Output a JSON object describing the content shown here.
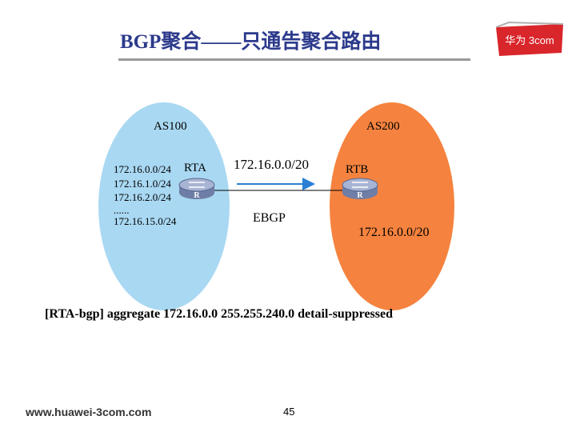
{
  "slide": {
    "title": "BGP聚合——只通告聚合路由",
    "logo_text": "华为 3com",
    "as_left": "AS100",
    "as_right": "AS200",
    "router_a": "RTA",
    "router_b": "RTB",
    "routes": [
      "172.16.0.0/24",
      "172.16.1.0/24",
      "172.16.2.0/24",
      "......",
      "172.16.15.0/24"
    ],
    "aggregate_sent": "172.16.0.0/20",
    "link_label": "EBGP",
    "aggregate_received": "172.16.0.0/20",
    "router_icon_letter": "R",
    "command": "[RTA-bgp] aggregate 172.16.0.0 255.255.240.0 detail-suppressed",
    "website": "www.huawei-3com.com",
    "page_number": "45"
  },
  "colors": {
    "as100_fill": "#a9d8f2",
    "as200_fill": "#f5833f",
    "title_color": "#2c3a8c",
    "arrow_color": "#2a7fd4",
    "logo_red": "#d9262b"
  },
  "icons": [
    "router-icon",
    "arrow-right-icon",
    "logo-icon"
  ]
}
